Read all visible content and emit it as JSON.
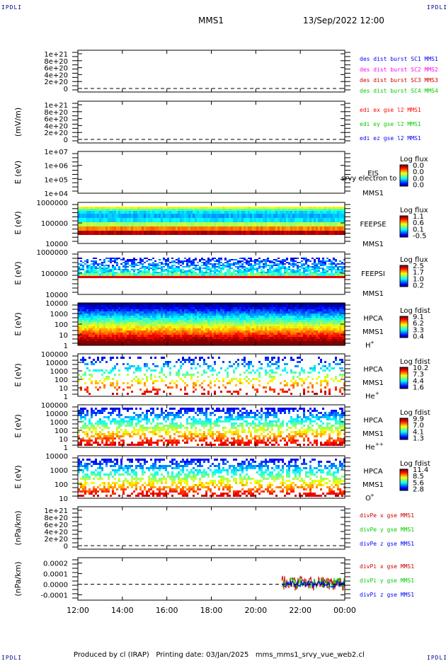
{
  "corner_label": "IPDLI",
  "header": {
    "mission": "MMS1",
    "datetime": "13/Sep/2022 12:00"
  },
  "footer": {
    "text": "Produced by cl (IRAP)   Printing date: 03/Jan/2025   mms_mms1_srvy_vue_web2.cl"
  },
  "time_axis": {
    "ticks": [
      "12:00",
      "14:00",
      "16:00",
      "18:00",
      "20:00",
      "22:00",
      "00:00"
    ]
  },
  "colors": {
    "red": "#ff0000",
    "green": "#00cc00",
    "blue": "#0000ff",
    "magenta": "#ff00ff",
    "darkred": "#cc0000"
  },
  "chart_data": [
    {
      "type": "line",
      "panel": "des-dist",
      "ylabel": "",
      "yticks": [
        "1e+21",
        "8e+20",
        "6e+20",
        "4e+20",
        "2e+20",
        "0"
      ],
      "ylim": [
        0,
        1e+21
      ],
      "legend": [
        {
          "text": "des dist burst SC1 MMS1",
          "color": "#0000ff"
        },
        {
          "text": "des dist burst SC2 MMS2",
          "color": "#ff00ff"
        },
        {
          "text": "des dist burst SC3 MMS3",
          "color": "#cc0000"
        },
        {
          "text": "des dist burst SC4 MMS4",
          "color": "#00cc00"
        }
      ],
      "series": []
    },
    {
      "type": "line",
      "panel": "edi",
      "ylabel": "(mV/m)",
      "yticks": [
        "1e+21",
        "8e+20",
        "6e+20",
        "4e+20",
        "2e+20",
        "0"
      ],
      "ylim": [
        0,
        1e+21
      ],
      "legend": [
        {
          "text": "edi ex gse l2 MMS1",
          "color": "#ff0000"
        },
        {
          "text": "edi ey gse l2 MMS1",
          "color": "#00cc00"
        },
        {
          "text": "edi ez gse l2 MMS1",
          "color": "#0000ff"
        }
      ],
      "series": []
    },
    {
      "type": "heatmap",
      "panel": "eis",
      "ylabel": "E (eV)",
      "yticks": [
        "1e+07",
        "1e+06",
        "1e+05",
        "1e+04"
      ],
      "labels": [
        "EIS",
        "MMS1"
      ],
      "overlay": "srvy electron to",
      "cb_title": "Log flux",
      "cb_ticks": [
        "0.0",
        "0.0",
        "0.0",
        "0.0"
      ]
    },
    {
      "type": "heatmap",
      "panel": "feepse",
      "ylabel": "E (eV)",
      "yticks": [
        "1000000",
        "100000",
        "10000"
      ],
      "labels": [
        "FEEPSE",
        "MMS1"
      ],
      "cb_title": "Log flux",
      "cb_ticks": [
        "1.1",
        "0.6",
        "0.1",
        "-0.5"
      ]
    },
    {
      "type": "heatmap",
      "panel": "feepsi",
      "ylabel": "E (eV)",
      "yticks": [
        "1000000",
        "100000",
        "10000"
      ],
      "labels": [
        "FEEPSI",
        "MMS1"
      ],
      "cb_title": "Log flux",
      "cb_ticks": [
        "2.5",
        "1.7",
        "1.0",
        "0.2"
      ]
    },
    {
      "type": "heatmap",
      "panel": "hpca-h",
      "ylabel": "E (eV)",
      "yticks": [
        "10000",
        "1000",
        "100",
        "10",
        "1"
      ],
      "labels": [
        "HPCA",
        "MMS1"
      ],
      "species": "H",
      "species_sup": "+",
      "cb_title": "Log fdist",
      "cb_ticks": [
        "9.1",
        "6.2",
        "3.3",
        "0.4"
      ]
    },
    {
      "type": "heatmap",
      "panel": "hpca-he",
      "ylabel": "E (eV)",
      "yticks": [
        "100000",
        "10000",
        "1000",
        "100",
        "10",
        "1"
      ],
      "labels": [
        "HPCA",
        "MMS1"
      ],
      "species": "He",
      "species_sup": "+",
      "cb_title": "Log fdist",
      "cb_ticks": [
        "10.2",
        "7.3",
        "4.4",
        "1.6"
      ]
    },
    {
      "type": "heatmap",
      "panel": "hpca-he2",
      "ylabel": "E (eV)",
      "yticks": [
        "100000",
        "10000",
        "1000",
        "100",
        "10",
        "1"
      ],
      "labels": [
        "HPCA",
        "MMS1"
      ],
      "species": "He",
      "species_sup": "++",
      "cb_title": "Log fdist",
      "cb_ticks": [
        "9.9",
        "7.0",
        "4.1",
        "1.3"
      ]
    },
    {
      "type": "heatmap",
      "panel": "hpca-o",
      "ylabel": "E (eV)",
      "yticks": [
        "10000",
        "1000",
        "100",
        "10"
      ],
      "labels": [
        "HPCA",
        "MMS1"
      ],
      "species": "O",
      "species_sup": "+",
      "cb_title": "Log fdist",
      "cb_ticks": [
        "11.4",
        "8.5",
        "5.6",
        "2.8"
      ]
    },
    {
      "type": "line",
      "panel": "divpe",
      "ylabel": "(nPa/km)",
      "yticks": [
        "1e+21",
        "8e+20",
        "6e+20",
        "4e+20",
        "2e+20",
        "0"
      ],
      "ylim": [
        0,
        1e+21
      ],
      "legend": [
        {
          "text": "divPe x gse MMS1",
          "color": "#cc0000"
        },
        {
          "text": "divPe y gse MMS1",
          "color": "#00cc00"
        },
        {
          "text": "divPe z gse MMS1",
          "color": "#0000ff"
        }
      ],
      "series": []
    },
    {
      "type": "line",
      "panel": "divpi",
      "ylabel": "(nPa/km)",
      "yticks": [
        "0.0002",
        "0.0001",
        "0.0000",
        "-0.0001"
      ],
      "ylim": [
        -0.00015,
        0.00025
      ],
      "legend": [
        {
          "text": "divPi x gse MMS1",
          "color": "#cc0000"
        },
        {
          "text": "divPi y gse MMS1",
          "color": "#00cc00"
        },
        {
          "text": "divPi z gse MMS1",
          "color": "#0000ff"
        }
      ],
      "series": [
        {
          "name": "divPi x gse MMS1",
          "start": "21:10",
          "end": "00:00",
          "range": [
            -6e-05,
            8e-05
          ]
        },
        {
          "name": "divPi y gse MMS1",
          "start": "21:10",
          "end": "00:00",
          "range": [
            -4e-05,
            6e-05
          ]
        },
        {
          "name": "divPi z gse MMS1",
          "start": "21:10",
          "end": "00:00",
          "range": [
            -3e-05,
            3e-05
          ]
        }
      ]
    }
  ]
}
